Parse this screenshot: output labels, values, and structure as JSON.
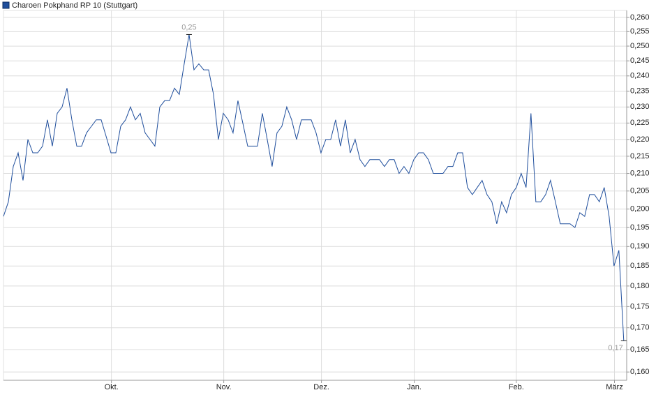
{
  "chart_data": {
    "type": "line",
    "yscale": "log",
    "grid": true,
    "legend": "top-left",
    "x": [
      0,
      1,
      2,
      3,
      4,
      5,
      6,
      7,
      8,
      9,
      10,
      11,
      12,
      13,
      14,
      15,
      16,
      17,
      18,
      19,
      20,
      21,
      22,
      23,
      24,
      25,
      26,
      27,
      28,
      29,
      30,
      31,
      32,
      33,
      34,
      35,
      36,
      37,
      38,
      39,
      40,
      41,
      42,
      43,
      44,
      45,
      46,
      47,
      48,
      49,
      50,
      51,
      52,
      53,
      54,
      55,
      56,
      57,
      58,
      59,
      60,
      61,
      62,
      63,
      64,
      65,
      66,
      67,
      68,
      69,
      70,
      71,
      72,
      73,
      74,
      75,
      76,
      77,
      78,
      79,
      80,
      81,
      82,
      83,
      84,
      85,
      86,
      87,
      88,
      89,
      90,
      91,
      92,
      93,
      94,
      95,
      96,
      97,
      98,
      99,
      100,
      101,
      102,
      103,
      104,
      105,
      106,
      107,
      108,
      109,
      110,
      111,
      112,
      113,
      114,
      115,
      116,
      117,
      118,
      119,
      120,
      121,
      122,
      123,
      124,
      125,
      126,
      127
    ],
    "xlim": [
      0,
      127.6
    ],
    "xticks": [
      {
        "value": 22.1,
        "label": "Okt."
      },
      {
        "value": 45.1,
        "label": "Nov."
      },
      {
        "value": 65.1,
        "label": "Dez."
      },
      {
        "value": 84.1,
        "label": "Jan."
      },
      {
        "value": 105,
        "label": "Feb."
      },
      {
        "value": 125.1,
        "label": "März"
      }
    ],
    "ylim": [
      0.1582,
      0.2625
    ],
    "yticks": [
      {
        "value": 0.16,
        "label": "0,160"
      },
      {
        "value": 0.165,
        "label": "0,165"
      },
      {
        "value": 0.17,
        "label": "0,170"
      },
      {
        "value": 0.175,
        "label": "0,175"
      },
      {
        "value": 0.18,
        "label": "0,180"
      },
      {
        "value": 0.185,
        "label": "0,185"
      },
      {
        "value": 0.19,
        "label": "0,190"
      },
      {
        "value": 0.195,
        "label": "0,195"
      },
      {
        "value": 0.2,
        "label": "0,200"
      },
      {
        "value": 0.205,
        "label": "0,205"
      },
      {
        "value": 0.21,
        "label": "0,210"
      },
      {
        "value": 0.215,
        "label": "0,215"
      },
      {
        "value": 0.22,
        "label": "0,220"
      },
      {
        "value": 0.225,
        "label": "0,225"
      },
      {
        "value": 0.23,
        "label": "0,230"
      },
      {
        "value": 0.235,
        "label": "0,235"
      },
      {
        "value": 0.24,
        "label": "0,240"
      },
      {
        "value": 0.245,
        "label": "0,245"
      },
      {
        "value": 0.25,
        "label": "0,250"
      },
      {
        "value": 0.255,
        "label": "0,255"
      },
      {
        "value": 0.26,
        "label": "0,260"
      }
    ],
    "max_label": "0,25",
    "last_label": "0,17",
    "series": [
      {
        "name": "Charoen Pokphand RP 10 (Stuttgart)",
        "color": "#1f4e9c",
        "values": [
          0.198,
          0.202,
          0.212,
          0.216,
          0.208,
          0.22,
          0.216,
          0.216,
          0.218,
          0.226,
          0.218,
          0.228,
          0.23,
          0.236,
          0.226,
          0.218,
          0.218,
          0.222,
          0.224,
          0.226,
          0.226,
          0.221,
          0.216,
          0.216,
          0.224,
          0.226,
          0.23,
          0.226,
          0.228,
          0.222,
          0.22,
          0.218,
          0.23,
          0.232,
          0.232,
          0.236,
          0.234,
          0.244,
          0.254,
          0.242,
          0.244,
          0.242,
          0.242,
          0.234,
          0.22,
          0.228,
          0.226,
          0.222,
          0.232,
          0.225,
          0.218,
          0.218,
          0.218,
          0.228,
          0.22,
          0.212,
          0.222,
          0.224,
          0.23,
          0.226,
          0.22,
          0.226,
          0.226,
          0.226,
          0.222,
          0.216,
          0.22,
          0.22,
          0.226,
          0.218,
          0.226,
          0.216,
          0.22,
          0.214,
          0.212,
          0.214,
          0.214,
          0.214,
          0.212,
          0.214,
          0.214,
          0.21,
          0.212,
          0.21,
          0.214,
          0.216,
          0.216,
          0.214,
          0.21,
          0.21,
          0.21,
          0.212,
          0.212,
          0.216,
          0.216,
          0.206,
          0.204,
          0.206,
          0.208,
          0.204,
          0.202,
          0.196,
          0.202,
          0.199,
          0.204,
          0.206,
          0.21,
          0.206,
          0.228,
          0.202,
          0.202,
          0.204,
          0.208,
          0.202,
          0.196,
          0.196,
          0.196,
          0.195,
          0.199,
          0.198,
          0.204,
          0.204,
          0.202,
          0.206,
          0.198,
          0.185,
          0.189,
          0.167
        ]
      }
    ]
  }
}
